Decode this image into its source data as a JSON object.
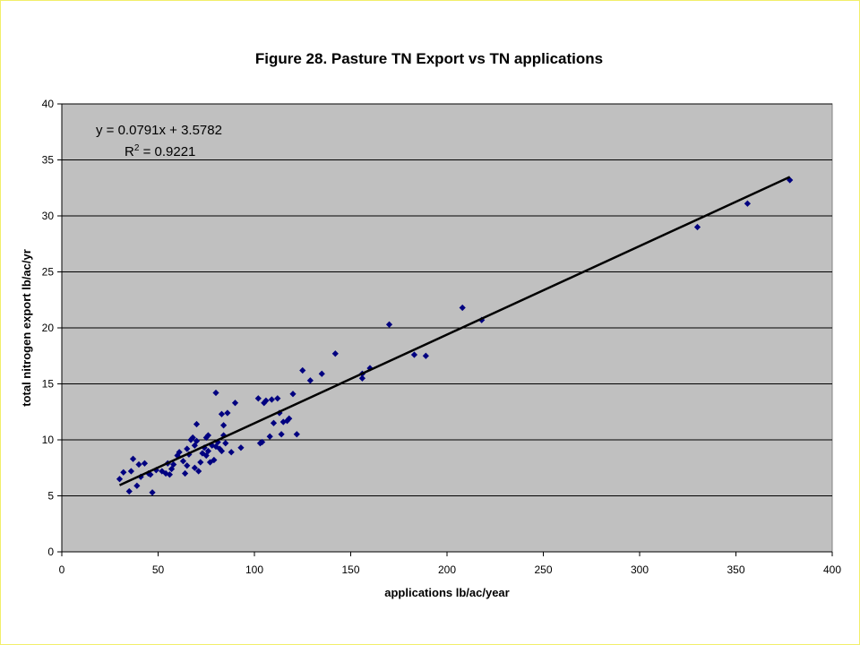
{
  "chart_data": {
    "type": "scatter",
    "title": "Figure 28.  Pasture TN Export vs TN applications",
    "xlabel": "applications lb/ac/year",
    "ylabel": "total nitrogen export lb/ac/yr",
    "xlim": [
      0,
      400
    ],
    "ylim": [
      0,
      40
    ],
    "x_ticks": [
      0,
      50,
      100,
      150,
      200,
      250,
      300,
      350,
      400
    ],
    "y_ticks": [
      0,
      5,
      10,
      15,
      20,
      25,
      30,
      35,
      40
    ],
    "grid": "horizontal",
    "plot_background": "#c0c0c0",
    "marker_color": "#000080",
    "trendline_color": "#000000",
    "trendline": {
      "slope": 0.0791,
      "intercept": 3.5782,
      "x_range": [
        30,
        378
      ],
      "equation": "y = 0.0791x + 3.5782",
      "r2_prefix": "R",
      "r2_superscript": "2",
      "r2_value": " = 0.9221"
    },
    "series": [
      {
        "points": [
          [
            30,
            6.5
          ],
          [
            32,
            7.1
          ],
          [
            35,
            5.4
          ],
          [
            36,
            7.2
          ],
          [
            37,
            8.3
          ],
          [
            39,
            5.9
          ],
          [
            40,
            7.8
          ],
          [
            41,
            6.7
          ],
          [
            43,
            7.9
          ],
          [
            45,
            7.0
          ],
          [
            46,
            6.9
          ],
          [
            47,
            5.3
          ],
          [
            49,
            7.3
          ],
          [
            52,
            7.2
          ],
          [
            54,
            7.0
          ],
          [
            55,
            7.9
          ],
          [
            56,
            6.9
          ],
          [
            57,
            7.4
          ],
          [
            58,
            7.8
          ],
          [
            60,
            8.6
          ],
          [
            61,
            8.9
          ],
          [
            63,
            8.1
          ],
          [
            64,
            7.0
          ],
          [
            65,
            9.2
          ],
          [
            65,
            7.7
          ],
          [
            66,
            8.7
          ],
          [
            67,
            10.0
          ],
          [
            68,
            10.2
          ],
          [
            69,
            9.5
          ],
          [
            69,
            7.5
          ],
          [
            70,
            11.4
          ],
          [
            70,
            9.9
          ],
          [
            71,
            7.2
          ],
          [
            72,
            8.0
          ],
          [
            73,
            8.8
          ],
          [
            74,
            9.3
          ],
          [
            75,
            10.2
          ],
          [
            75,
            8.6
          ],
          [
            76,
            10.4
          ],
          [
            76,
            9.0
          ],
          [
            77,
            8.0
          ],
          [
            78,
            9.5
          ],
          [
            79,
            8.2
          ],
          [
            80,
            14.2
          ],
          [
            80,
            9.4
          ],
          [
            81,
            9.8
          ],
          [
            82,
            9.2
          ],
          [
            83,
            12.3
          ],
          [
            83,
            9.0
          ],
          [
            84,
            11.3
          ],
          [
            84,
            10.4
          ],
          [
            85,
            9.7
          ],
          [
            86,
            12.4
          ],
          [
            88,
            8.9
          ],
          [
            90,
            13.3
          ],
          [
            93,
            9.3
          ],
          [
            102,
            13.7
          ],
          [
            103,
            9.7
          ],
          [
            104,
            9.8
          ],
          [
            105,
            13.3
          ],
          [
            106,
            13.5
          ],
          [
            108,
            10.3
          ],
          [
            109,
            13.6
          ],
          [
            110,
            11.5
          ],
          [
            112,
            13.7
          ],
          [
            113,
            12.4
          ],
          [
            114,
            10.5
          ],
          [
            115,
            11.6
          ],
          [
            117,
            11.7
          ],
          [
            118,
            11.9
          ],
          [
            120,
            14.1
          ],
          [
            122,
            10.5
          ],
          [
            125,
            16.2
          ],
          [
            129,
            15.3
          ],
          [
            135,
            15.9
          ],
          [
            142,
            17.7
          ],
          [
            156,
            15.5
          ],
          [
            156,
            15.9
          ],
          [
            160,
            16.4
          ],
          [
            170,
            20.3
          ],
          [
            183,
            17.6
          ],
          [
            189,
            17.5
          ],
          [
            208,
            21.8
          ],
          [
            218,
            20.7
          ],
          [
            330,
            29.0
          ],
          [
            356,
            31.1
          ],
          [
            378,
            33.2
          ]
        ]
      }
    ]
  }
}
